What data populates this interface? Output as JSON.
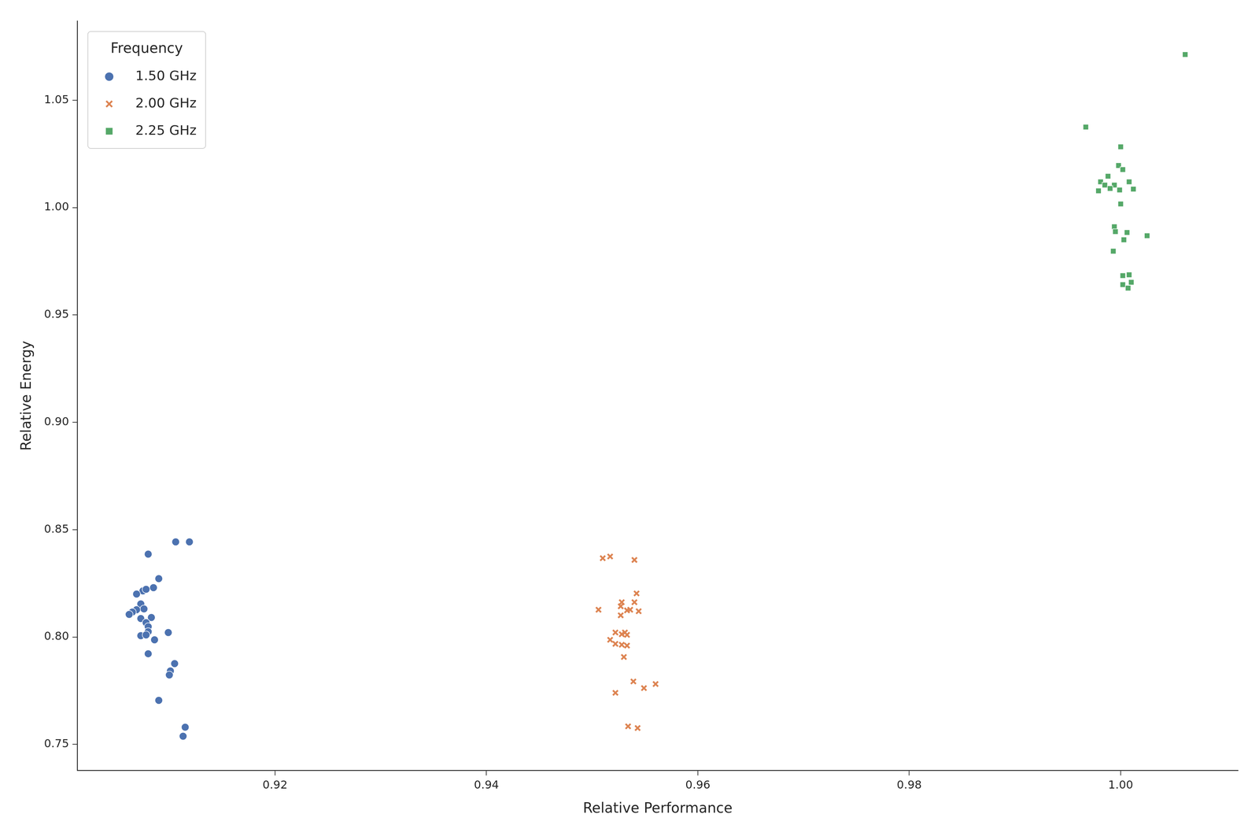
{
  "chart_data": {
    "type": "scatter",
    "x_label": "Relative Performance",
    "y_label": "Relative Energy",
    "legend": "upper left",
    "legend_title": "Frequency",
    "grid": false,
    "xlim": [
      0.9013,
      1.0111
    ],
    "ylim": [
      0.7378,
      1.0869
    ],
    "xticks": [
      0.92,
      0.94,
      0.96,
      0.98,
      {
        "value": 1.0,
        "label": "1.00"
      }
    ],
    "yticks": [
      0.75,
      {
        "value": 0.8,
        "label": "0.80"
      },
      0.85,
      {
        "value": 0.9,
        "label": "0.90"
      },
      0.95,
      {
        "value": 1.0,
        "label": "1.00"
      },
      1.05
    ],
    "series": [
      {
        "name": "1.50 GHz",
        "color": "#4c72b0",
        "marker": "circle",
        "x": [
          0.9106,
          0.9119,
          0.908,
          0.909,
          0.9085,
          0.9075,
          0.9078,
          0.9069,
          0.9073,
          0.9076,
          0.9069,
          0.9065,
          0.9062,
          0.9083,
          0.9073,
          0.9078,
          0.908,
          0.908,
          0.9073,
          0.9078,
          0.9099,
          0.9086,
          0.908,
          0.9105,
          0.9101,
          0.91,
          0.909,
          0.9115,
          0.9113
        ],
        "values": [
          0.8443,
          0.8443,
          0.8386,
          0.8272,
          0.823,
          0.8215,
          0.8222,
          0.82,
          0.8154,
          0.8131,
          0.8127,
          0.8116,
          0.8105,
          0.8091,
          0.8086,
          0.8067,
          0.8048,
          0.8025,
          0.8006,
          0.801,
          0.8021,
          0.7987,
          0.7922,
          0.7876,
          0.7842,
          0.7823,
          0.7705,
          0.758,
          0.7538
        ]
      },
      {
        "name": "2.00 GHz",
        "color": "#dd8452",
        "marker": "x",
        "x": [
          0.951,
          0.9517,
          0.954,
          0.9542,
          0.954,
          0.9528,
          0.9527,
          0.9506,
          0.9536,
          0.9544,
          0.9533,
          0.9527,
          0.9522,
          0.9531,
          0.9528,
          0.9533,
          0.9517,
          0.9522,
          0.9533,
          0.9528,
          0.953,
          0.9539,
          0.956,
          0.9549,
          0.9522,
          0.9534,
          0.9543
        ],
        "values": [
          0.8367,
          0.8375,
          0.8359,
          0.8203,
          0.8162,
          0.8162,
          0.8143,
          0.8127,
          0.8127,
          0.812,
          0.8124,
          0.8101,
          0.8021,
          0.8021,
          0.8013,
          0.801,
          0.7987,
          0.7968,
          0.796,
          0.7964,
          0.7907,
          0.7793,
          0.7781,
          0.7762,
          0.774,
          0.7584,
          0.7576
        ]
      },
      {
        "name": "2.25 GHz",
        "color": "#55a868",
        "marker": "square",
        "x": [
          1.0061,
          0.9967,
          1.0,
          0.9998,
          1.0002,
          0.9988,
          0.9981,
          1.0008,
          0.9985,
          0.9994,
          0.999,
          0.9999,
          0.9979,
          1.0012,
          1.0,
          0.9994,
          0.9995,
          1.0006,
          1.0025,
          1.0003,
          0.9993,
          1.0002,
          1.0008,
          1.0002,
          1.001,
          1.0007
        ],
        "values": [
          1.0713,
          1.0375,
          1.0283,
          1.0196,
          1.0177,
          1.0146,
          1.012,
          1.012,
          1.0105,
          1.0105,
          1.0089,
          1.0082,
          1.0078,
          1.0086,
          1.0017,
          0.9911,
          0.9888,
          0.9884,
          0.9869,
          0.985,
          0.9797,
          0.9683,
          0.9687,
          0.9641,
          0.9652,
          0.9625
        ]
      }
    ]
  }
}
